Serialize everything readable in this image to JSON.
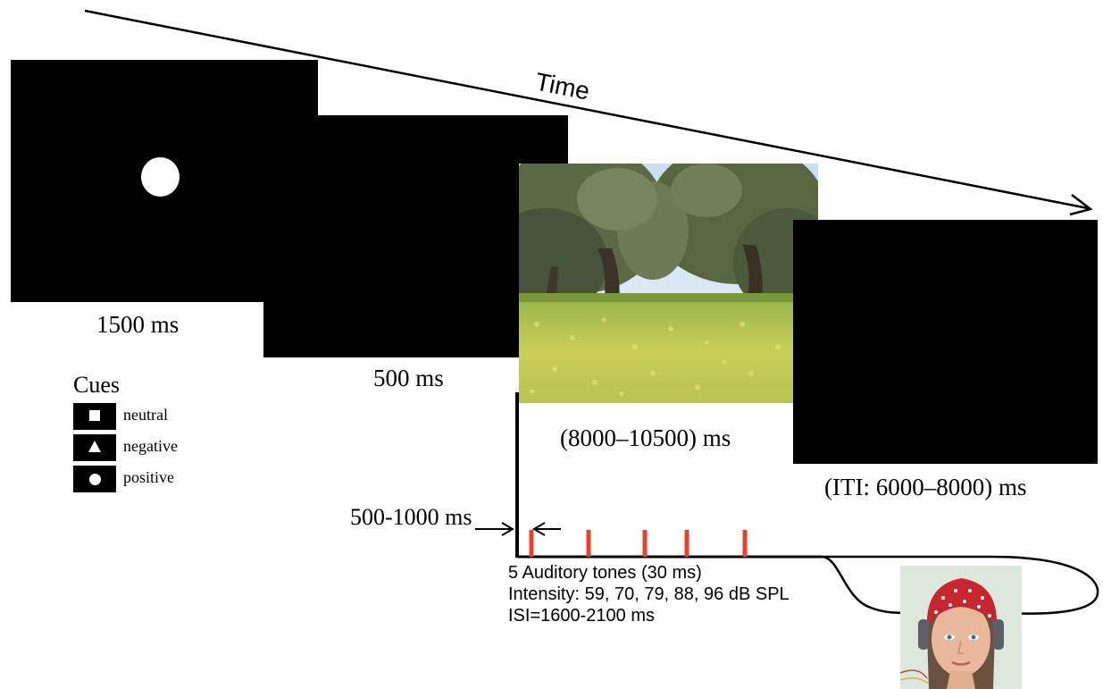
{
  "timeline": {
    "axis_label": "Time"
  },
  "screens": {
    "cue": {
      "duration": "1500 ms"
    },
    "blank": {
      "duration": "500 ms"
    },
    "picture": {
      "duration": "(8000–10500) ms",
      "scene": "olive grove with yellow flowers"
    },
    "iti": {
      "duration": "(ITI: 6000–8000) ms"
    }
  },
  "cues": {
    "title": "Cues",
    "items": [
      {
        "shape": "square",
        "label": "neutral"
      },
      {
        "shape": "triangle",
        "label": "negative"
      },
      {
        "shape": "circle",
        "label": "positive"
      }
    ]
  },
  "onset": {
    "label": "500-1000 ms"
  },
  "auditory": {
    "lines": [
      "5 Auditory tones  (30 ms)",
      "Intensity: 59, 70, 79, 88, 96 dB SPL",
      "ISI=1600-2100 ms"
    ],
    "tone_count": 5,
    "tone_color": "#e8402a"
  },
  "equipment": {
    "image": "mannequin head with red EEG cap and headphones"
  }
}
